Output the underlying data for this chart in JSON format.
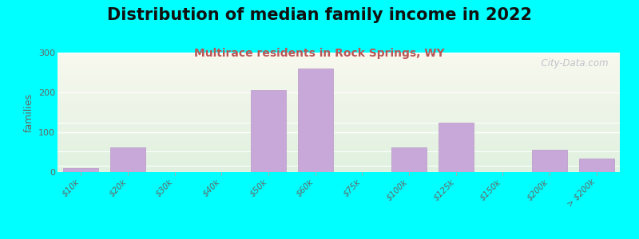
{
  "title": "Distribution of median family income in 2022",
  "subtitle": "Multirace residents in Rock Springs, WY",
  "ylabel": "families",
  "categories": [
    "$10k",
    "$20k",
    "$30k",
    "$40k",
    "$50k",
    "$60k",
    "$75k",
    "$100k",
    "$125k",
    "$150k",
    "$200k",
    "> $200k"
  ],
  "values": [
    10,
    62,
    0,
    0,
    207,
    260,
    0,
    63,
    125,
    0,
    57,
    35
  ],
  "bar_color": "#c8a8d8",
  "bar_edge_color": "#b898c8",
  "ylim": [
    0,
    300
  ],
  "yticks": [
    0,
    100,
    200,
    300
  ],
  "background_color": "#00ffff",
  "plot_bg_top": "#f8f8ee",
  "plot_bg_bottom": "#dff0df",
  "title_fontsize": 15,
  "subtitle_fontsize": 10,
  "subtitle_color": "#bb5555",
  "ylabel_fontsize": 9,
  "tick_label_fontsize": 7.5,
  "watermark_text": "  City-Data.com",
  "watermark_color": "#b8b8c4"
}
